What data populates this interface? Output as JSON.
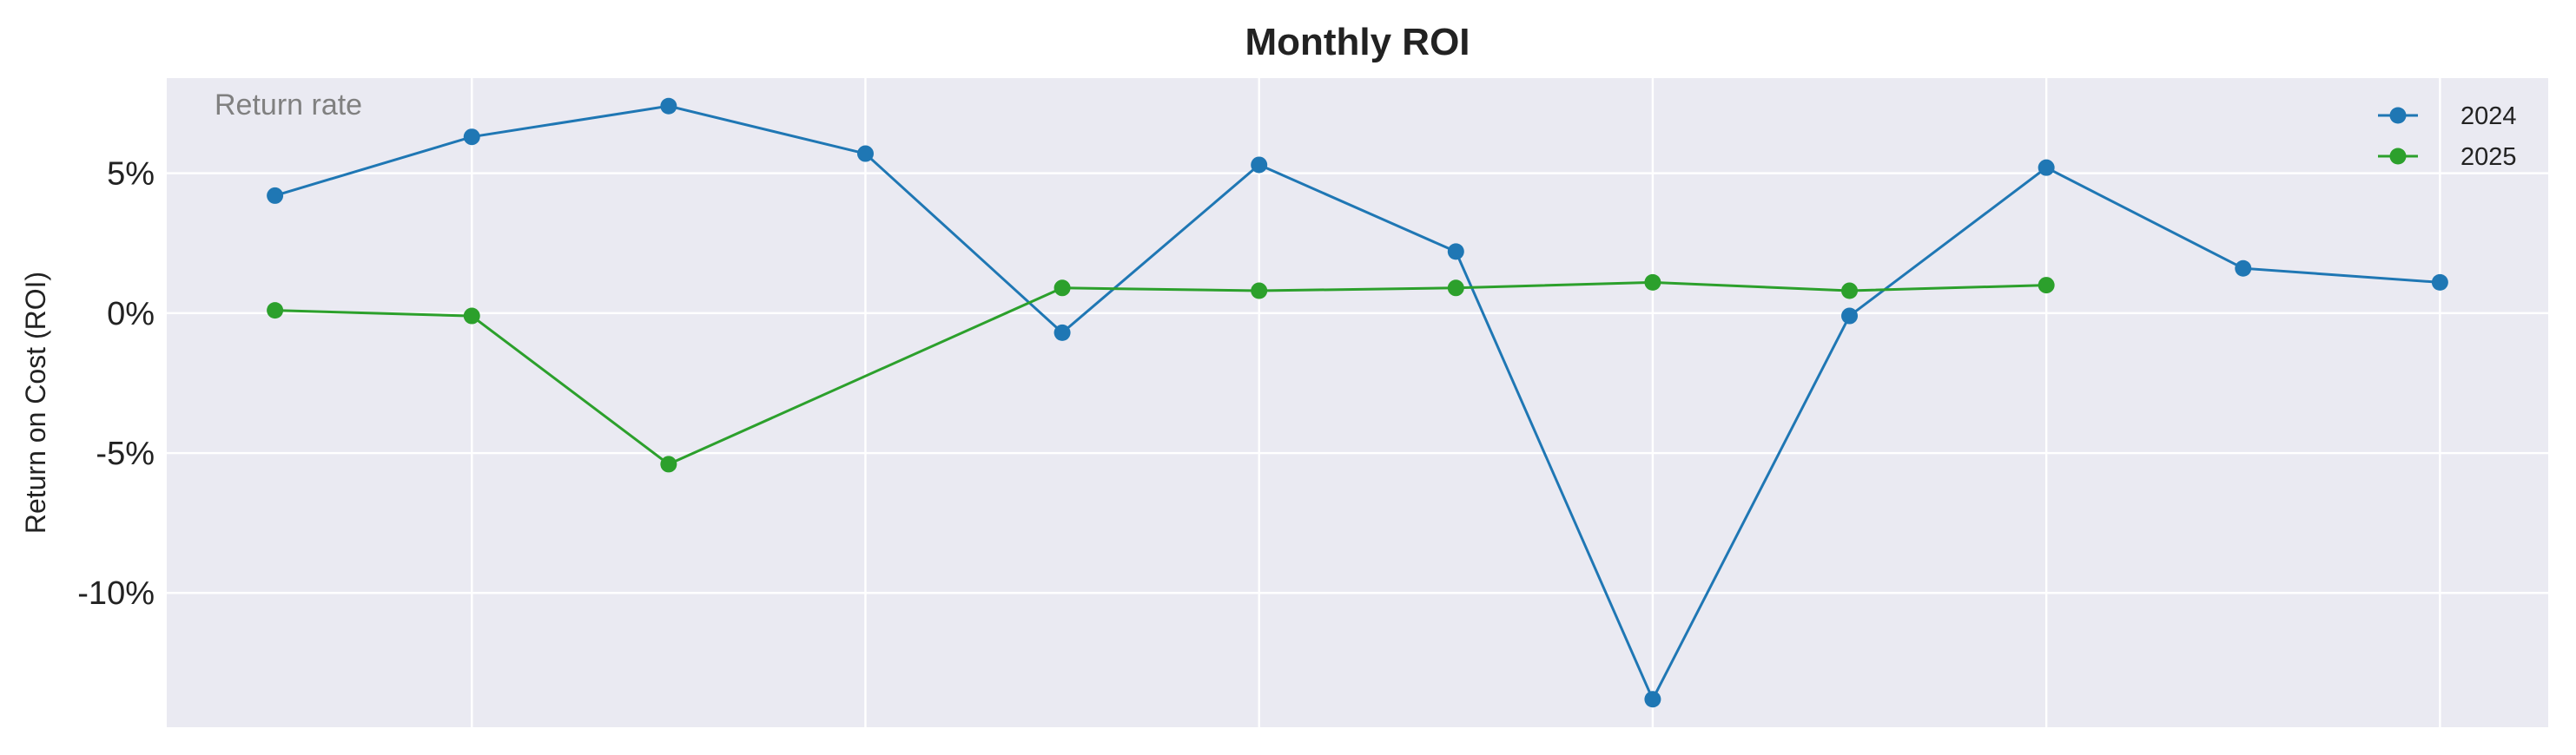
{
  "chart_data": {
    "type": "line",
    "title": "Monthly ROI",
    "ylabel": "Return on Cost (ROI)",
    "xlabel": "",
    "annotation": "Return rate",
    "x": [
      1,
      2,
      3,
      4,
      5,
      6,
      7,
      8,
      9,
      10,
      11,
      12
    ],
    "xlim": [
      0.45,
      12.55
    ],
    "ylim": [
      -14.8,
      8.4
    ],
    "y_ticks": [
      5,
      0,
      -5,
      -10
    ],
    "y_tick_labels": [
      "5%",
      "0%",
      "-5%",
      "-10%"
    ],
    "x_grid_lines": [
      2,
      4,
      6,
      8,
      10,
      12
    ],
    "grid": true,
    "legend_position": "top-right",
    "background_color": "#eaeaf2",
    "series": [
      {
        "name": "2024",
        "color": "#1f77b4",
        "values": [
          4.2,
          6.3,
          7.4,
          5.7,
          -0.7,
          5.3,
          2.2,
          -13.8,
          -0.1,
          5.2,
          1.6,
          1.1
        ]
      },
      {
        "name": "2025",
        "color": "#2ca02c",
        "values": [
          0.1,
          -0.1,
          -5.4,
          null,
          0.9,
          0.8,
          0.9,
          1.1,
          0.8,
          1.0,
          null,
          null
        ]
      }
    ]
  }
}
